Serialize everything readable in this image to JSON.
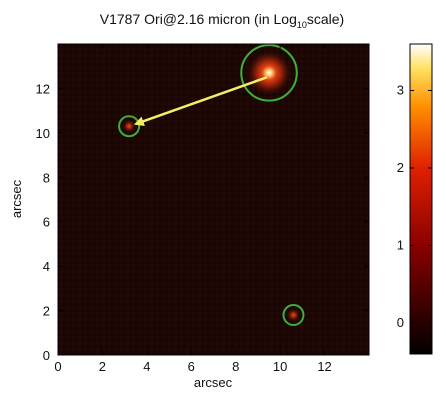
{
  "chart_data": {
    "type": "heatmap",
    "title_main": "V1787 Ori@2.16 micron (in Log",
    "title_sub": "10",
    "title_end": "scale)",
    "xlabel": "arcsec",
    "ylabel": "arcsec",
    "xlim": [
      0,
      14
    ],
    "ylim": [
      0,
      14
    ],
    "x_ticks": [
      "0",
      "2",
      "4",
      "6",
      "8",
      "10",
      "12"
    ],
    "y_ticks": [
      "0",
      "2",
      "4",
      "6",
      "8",
      "10",
      "12"
    ],
    "x_tick_values": [
      0,
      2,
      4,
      6,
      8,
      10,
      12
    ],
    "y_tick_values": [
      0,
      2,
      4,
      6,
      8,
      10,
      12
    ],
    "colorbar": {
      "range": [
        -0.4,
        3.6
      ],
      "ticks": [
        "0",
        "1",
        "2",
        "3"
      ],
      "tick_values": [
        0,
        1,
        2,
        3
      ],
      "colormap": "heat"
    },
    "sources": [
      {
        "x": 9.5,
        "y": 12.7,
        "radius": 1.25,
        "peak": 3.6
      },
      {
        "x": 3.2,
        "y": 10.3,
        "radius": 0.45,
        "peak": 1.0
      },
      {
        "x": 10.6,
        "y": 1.8,
        "radius": 0.45,
        "peak": 1.4
      }
    ],
    "arrow": {
      "from": [
        9.4,
        12.5
      ],
      "to": [
        3.5,
        10.4
      ],
      "color": "#f3ee6a"
    },
    "circle_color": "#3fae3a",
    "background_color": "#1b0704"
  }
}
